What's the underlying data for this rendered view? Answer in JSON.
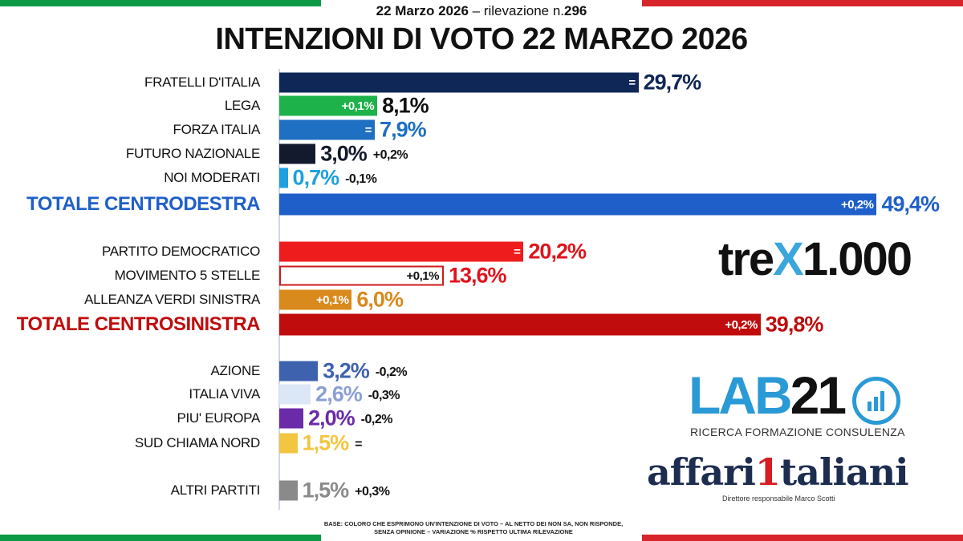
{
  "header": {
    "date": "22 Marzo 2026",
    "survey_prefix": "– rilevazione n.",
    "survey_number": "296",
    "title": "INTENZIONI DI VOTO 22 MARZO 2026"
  },
  "colors": {
    "flag_green": "#0d9a47",
    "flag_red": "#d8252c",
    "axis": "#cfd8e3"
  },
  "chart_data": {
    "type": "bar",
    "orientation": "horizontal",
    "unit": "%",
    "xlim": [
      0,
      50
    ],
    "grid": false,
    "rows": [
      {
        "label": "FRATELLI D'ITALIA",
        "value": 29.7,
        "value_label": "29,7%",
        "change": "=",
        "color": "#0f2757",
        "value_color": "#0f2757",
        "change_pos": "inside"
      },
      {
        "label": "LEGA",
        "value": 8.1,
        "value_label": "8,1%",
        "change": "+0,1%",
        "color": "#1db24a",
        "value_color": "#111111",
        "change_pos": "inside"
      },
      {
        "label": "FORZA ITALIA",
        "value": 7.9,
        "value_label": "7,9%",
        "change": "=",
        "color": "#1f6fc2",
        "value_color": "#1f6fc2",
        "change_pos": "inside"
      },
      {
        "label": "FUTURO NAZIONALE",
        "value": 3.0,
        "value_label": "3,0%",
        "change": "+0,2%",
        "color": "#141a2e",
        "value_color": "#141a2e",
        "change_pos": "outside"
      },
      {
        "label": "NOI MODERATI",
        "value": 0.7,
        "value_label": "0,7%",
        "change": "-0,1%",
        "color": "#1ea0e0",
        "value_color": "#1ea0e0",
        "change_pos": "outside"
      },
      {
        "label": "TOTALE CENTRODESTRA",
        "value": 49.4,
        "value_label": "49,4%",
        "change": "+0,2%",
        "color": "#1f5fc9",
        "value_color": "#1f5fc9",
        "change_pos": "inside",
        "total": true
      },
      {
        "label": "PARTITO DEMOCRATICO",
        "value": 20.2,
        "value_label": "20,2%",
        "change": "=",
        "color": "#ee1c1c",
        "value_color": "#e0141c",
        "change_pos": "inside"
      },
      {
        "label": "MOVIMENTO 5 STELLE",
        "value": 13.6,
        "value_label": "13,6%",
        "change": "+0,1%",
        "color": "#ffffff",
        "border": "#d01a1a",
        "change_color": "#111111",
        "value_color": "#e0141c",
        "change_pos": "inside"
      },
      {
        "label": "ALLEANZA VERDI SINISTRA",
        "value": 6.0,
        "value_label": "6,0%",
        "change": "+0,1%",
        "color": "#d98a1c",
        "value_color": "#d98a1c",
        "change_pos": "inside"
      },
      {
        "label": "TOTALE CENTROSINISTRA",
        "value": 39.8,
        "value_label": "39,8%",
        "change": "+0,2%",
        "color": "#c00c0c",
        "value_color": "#c00c0c",
        "change_pos": "inside",
        "total": true
      },
      {
        "label": "AZIONE",
        "value": 3.2,
        "value_label": "3,2%",
        "change": "-0,2%",
        "color": "#3e62ae",
        "value_color": "#3e62ae",
        "change_pos": "outside"
      },
      {
        "label": "ITALIA VIVA",
        "value": 2.6,
        "value_label": "2,6%",
        "change": "-0,3%",
        "color": "#dbe6f6",
        "value_color": "#8a9fd4",
        "change_pos": "outside"
      },
      {
        "label": "PIU' EUROPA",
        "value": 2.0,
        "value_label": "2,0%",
        "change": "-0,2%",
        "color": "#6b2aa8",
        "value_color": "#6b2aa8",
        "change_pos": "outside"
      },
      {
        "label": "SUD CHIAMA NORD",
        "value": 1.5,
        "value_label": "1,5%",
        "change": "=",
        "color": "#f2c640",
        "value_color": "#f2c640",
        "change_pos": "outside"
      },
      {
        "label": "ALTRI PARTITI",
        "value": 1.5,
        "value_label": "1,5%",
        "change": "+0,3%",
        "color": "#8a8a8a",
        "value_color": "#8a8a8a",
        "change_pos": "outside"
      }
    ]
  },
  "logos": {
    "tre_a": "tre",
    "tre_x": "X",
    "tre_b": "1.000",
    "lab_a": "LAB",
    "lab_b": "21",
    "lab_sub": "RICERCA FORMAZIONE CONSULENZA",
    "aff_a": "affari",
    "aff_one": "1",
    "aff_b": "taliani",
    "aff_sub": "Direttore responsabile Marco Scotti"
  },
  "footnote": "BASE: COLORO CHE ESPRIMONO UN'INTENZIONE DI VOTO – AL NETTO DEI NON SA, NON RISPONDE, SENZA OPINIONE – VARIAZIONE % RISPETTO ULTIMA RILEVAZIONE"
}
